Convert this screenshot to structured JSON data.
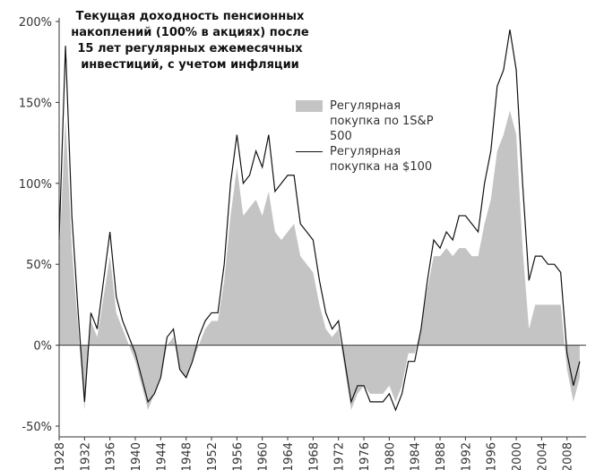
{
  "chart_data": {
    "type": "area-line",
    "title": [
      "Текущая доходность пенсионных",
      "накоплений (100% в акциях) после",
      "15 лет регулярных ежемесячных",
      "инвестиций, с учетом инфляции"
    ],
    "x": [
      1928,
      1929,
      1930,
      1931,
      1932,
      1933,
      1934,
      1935,
      1936,
      1937,
      1938,
      1939,
      1940,
      1941,
      1942,
      1943,
      1944,
      1945,
      1946,
      1947,
      1948,
      1949,
      1950,
      1951,
      1952,
      1953,
      1954,
      1955,
      1956,
      1957,
      1958,
      1959,
      1960,
      1961,
      1962,
      1963,
      1964,
      1965,
      1966,
      1967,
      1968,
      1969,
      1970,
      1971,
      1972,
      1973,
      1974,
      1975,
      1976,
      1977,
      1978,
      1979,
      1980,
      1981,
      1982,
      1983,
      1984,
      1985,
      1986,
      1987,
      1988,
      1989,
      1990,
      1991,
      1992,
      1993,
      1994,
      1995,
      1996,
      1997,
      1998,
      1999,
      2000,
      2001,
      2002,
      2003,
      2004,
      2005,
      2006,
      2007,
      2008,
      2009,
      2010
    ],
    "series": [
      {
        "name": "Регулярная покупка по 1S&P 500",
        "color": "#c4c4c4",
        "kind": "area",
        "values": [
          55,
          140,
          60,
          10,
          -40,
          15,
          5,
          30,
          55,
          20,
          10,
          0,
          -10,
          -25,
          -40,
          -30,
          -20,
          0,
          5,
          -15,
          -20,
          -10,
          0,
          10,
          15,
          15,
          40,
          80,
          110,
          80,
          85,
          90,
          80,
          95,
          70,
          65,
          70,
          75,
          55,
          50,
          45,
          25,
          10,
          5,
          10,
          -15,
          -40,
          -30,
          -25,
          -30,
          -30,
          -30,
          -25,
          -35,
          -25,
          -5,
          -5,
          10,
          35,
          55,
          55,
          60,
          55,
          60,
          60,
          55,
          55,
          75,
          90,
          120,
          130,
          145,
          130,
          60,
          10,
          25,
          25,
          25,
          25,
          25,
          -15,
          -35,
          -20
        ]
      },
      {
        "name": "Регулярная покупка на $100",
        "color": "#111111",
        "kind": "line",
        "values": [
          65,
          185,
          80,
          20,
          -35,
          20,
          10,
          40,
          70,
          30,
          15,
          5,
          -5,
          -20,
          -35,
          -30,
          -20,
          5,
          10,
          -15,
          -20,
          -10,
          5,
          15,
          20,
          20,
          50,
          100,
          130,
          100,
          105,
          120,
          110,
          130,
          95,
          100,
          105,
          105,
          75,
          70,
          65,
          40,
          20,
          10,
          15,
          -10,
          -35,
          -25,
          -25,
          -35,
          -35,
          -35,
          -30,
          -40,
          -30,
          -10,
          -10,
          10,
          40,
          65,
          60,
          70,
          65,
          80,
          80,
          75,
          70,
          100,
          120,
          160,
          170,
          195,
          170,
          100,
          40,
          55,
          55,
          50,
          50,
          45,
          -5,
          -25,
          -10
        ]
      }
    ],
    "xlim": [
      1928,
      2011
    ],
    "xticks": [
      1928,
      1932,
      1936,
      1940,
      1944,
      1948,
      1952,
      1956,
      1960,
      1964,
      1968,
      1972,
      1976,
      1980,
      1984,
      1988,
      1992,
      1996,
      2000,
      2004,
      2008
    ],
    "ylim": [
      -50,
      200
    ],
    "yticks": [
      {
        "value": -50,
        "label": "-50%"
      },
      {
        "value": 0,
        "label": "0%"
      },
      {
        "value": 50,
        "label": "50%"
      },
      {
        "value": 100,
        "label": "100%"
      },
      {
        "value": 150,
        "label": "150%"
      },
      {
        "value": 200,
        "label": "200%"
      }
    ]
  }
}
